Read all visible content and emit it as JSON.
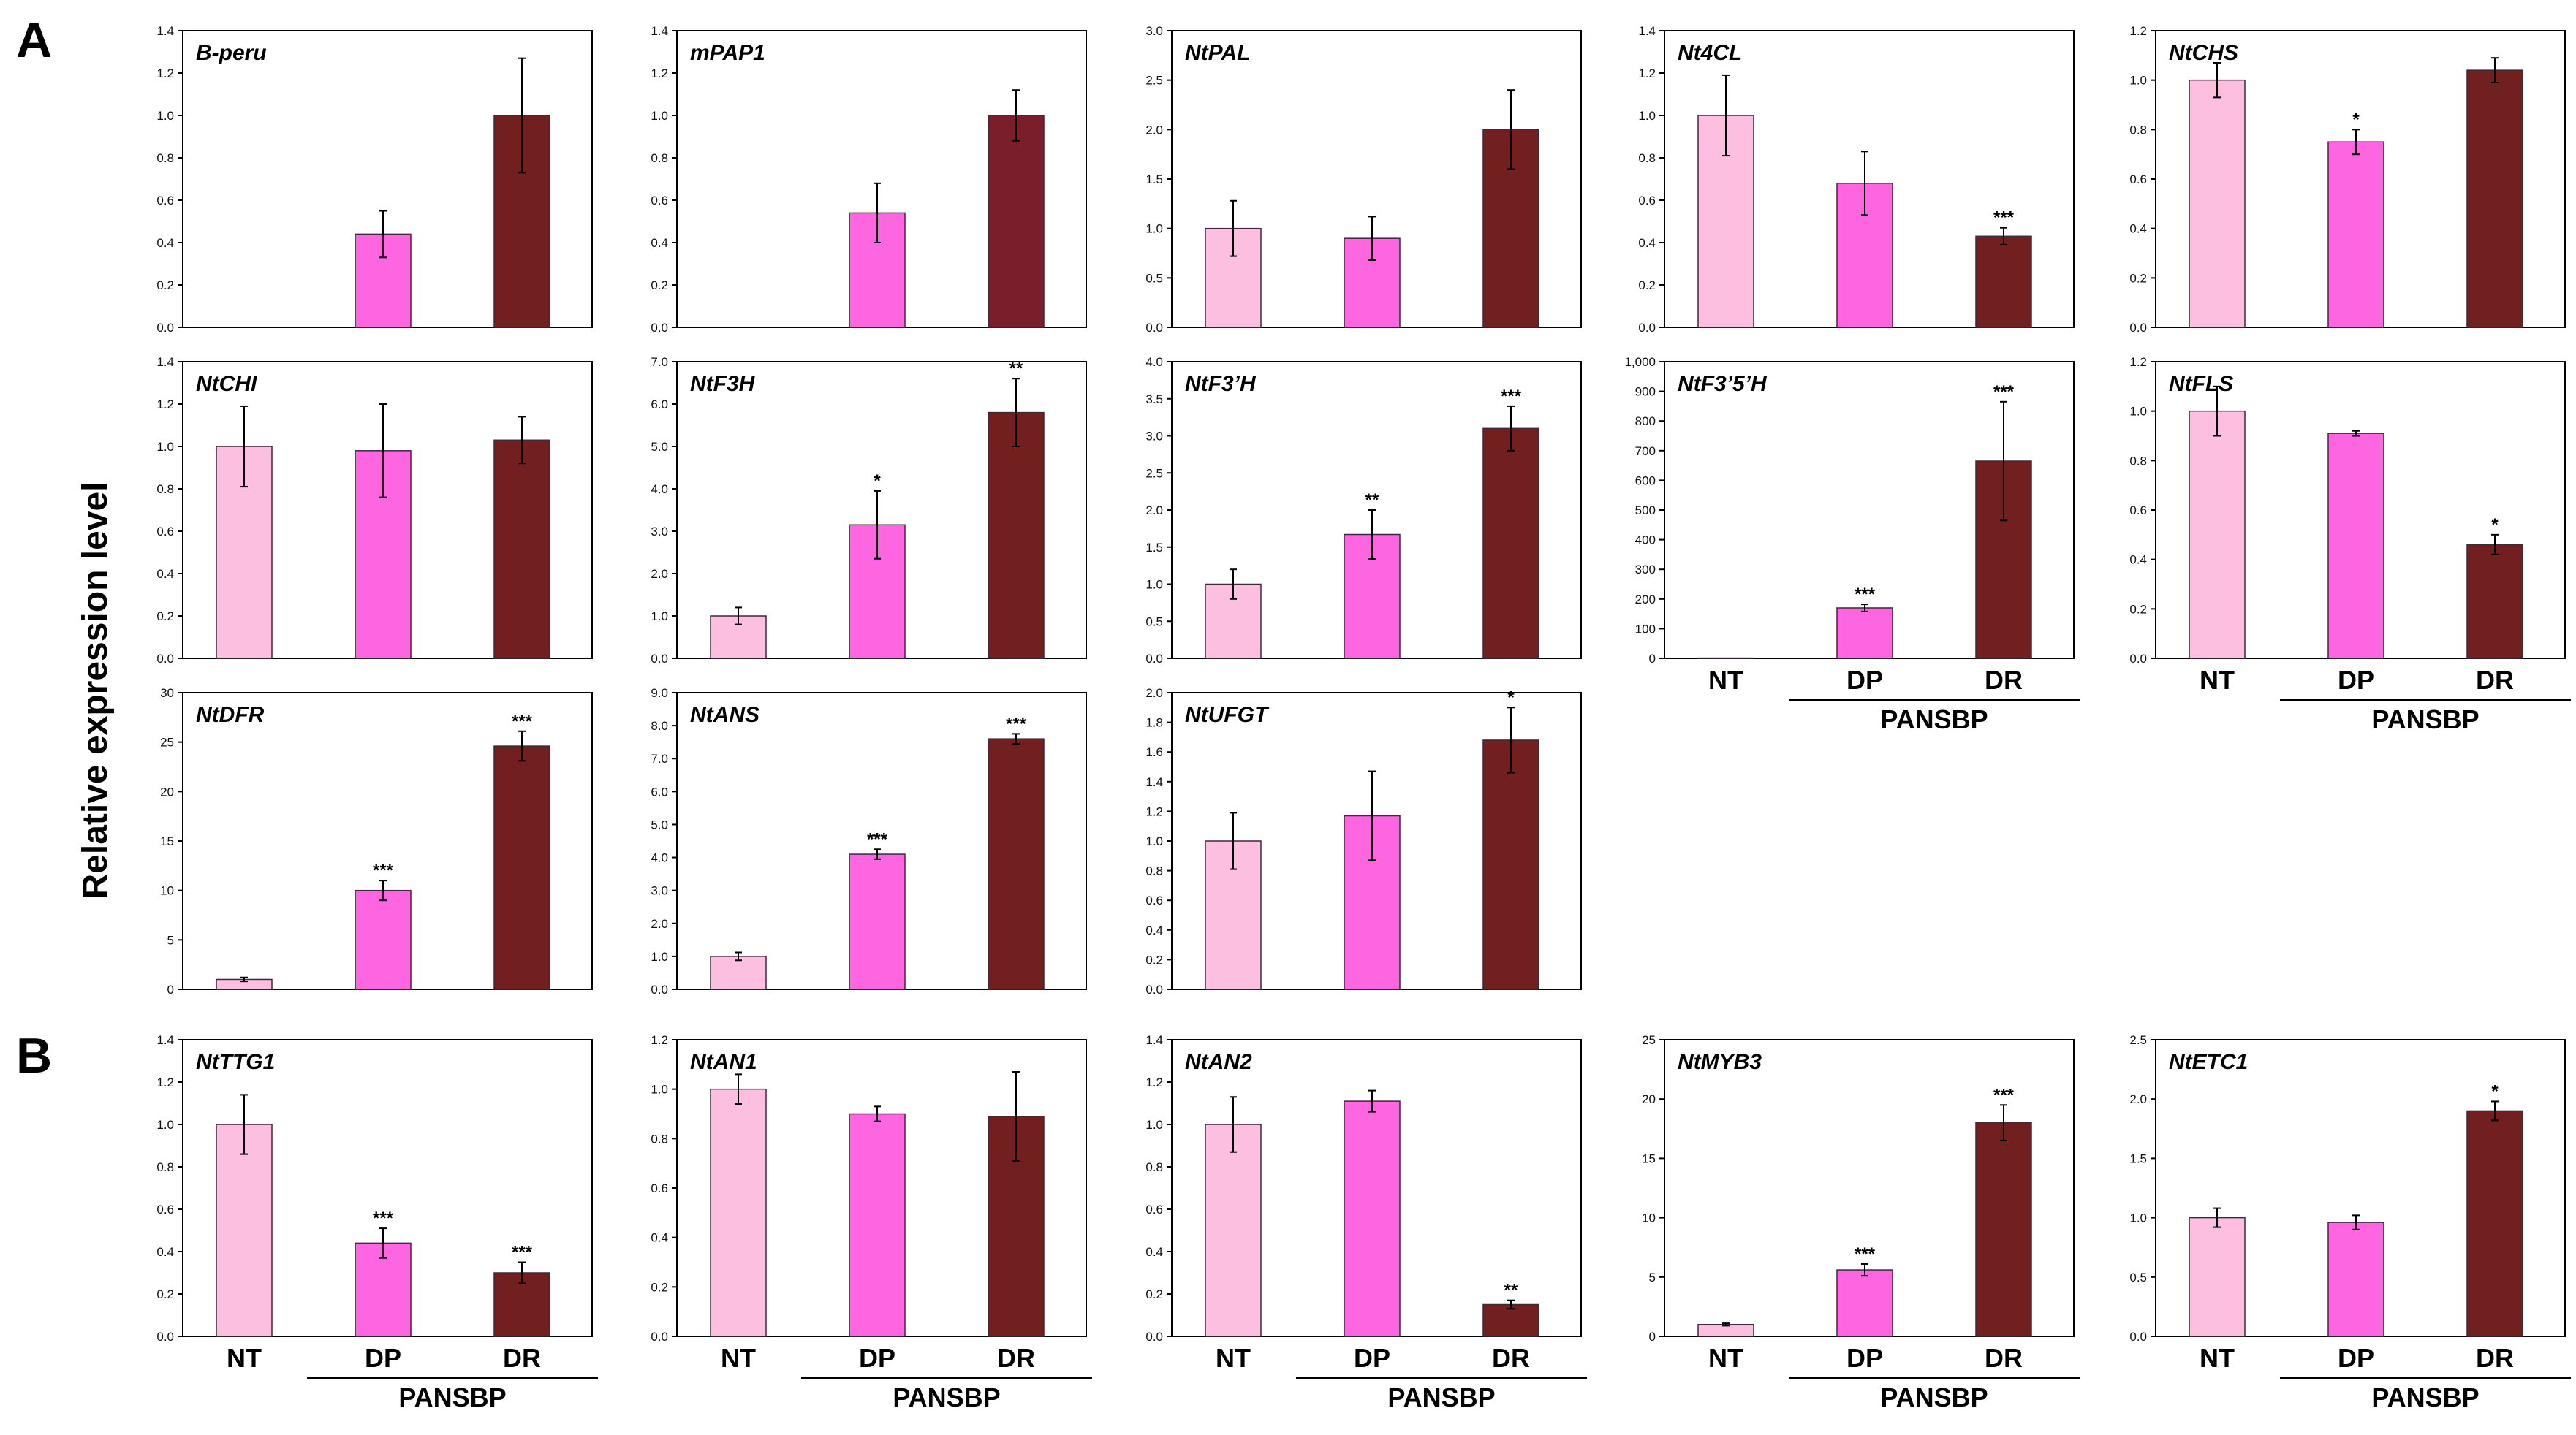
{
  "figure": {
    "panel_labels": [
      "A",
      "B"
    ],
    "shared_ylabel": "Relative expression level",
    "categories": [
      "NT",
      "DP",
      "DR"
    ],
    "group_label": "PANSBP",
    "colors": {
      "NT": "#fdbfe0",
      "DP": "#fd66e0",
      "DR": "#721f1f",
      "axis": "#000000"
    }
  },
  "chart_data": [
    {
      "type": "bar",
      "title": "B-peru",
      "panel": "A",
      "ylim": [
        0,
        1.4
      ],
      "yticks": [
        "0.0",
        "0.2",
        "0.4",
        "0.6",
        "0.8",
        "1.0",
        "1.2",
        "1.4"
      ],
      "categories": [
        "NT",
        "DP",
        "DR"
      ],
      "values": [
        0,
        0.44,
        1.0
      ],
      "errors": [
        0,
        0.11,
        0.27
      ],
      "significance": [
        "",
        "",
        ""
      ]
    },
    {
      "type": "bar",
      "title": "mPAP1",
      "panel": "A",
      "ylim": [
        0,
        1.4
      ],
      "yticks": [
        "0.0",
        "0.2",
        "0.4",
        "0.6",
        "0.8",
        "1.0",
        "1.2",
        "1.4"
      ],
      "categories": [
        "NT",
        "DP",
        "DR"
      ],
      "values": [
        0,
        0.54,
        1.0
      ],
      "errors": [
        0,
        0.14,
        0.12
      ],
      "significance": [
        "",
        "",
        ""
      ],
      "dr_color": "#7b1e2b"
    },
    {
      "type": "bar",
      "title": "NtPAL",
      "panel": "A",
      "ylim": [
        0,
        3.0
      ],
      "yticks": [
        "0.0",
        "0.5",
        "1.0",
        "1.5",
        "2.0",
        "2.5",
        "3.0"
      ],
      "categories": [
        "NT",
        "DP",
        "DR"
      ],
      "values": [
        1.0,
        0.9,
        2.0
      ],
      "errors": [
        0.28,
        0.22,
        0.4
      ],
      "significance": [
        "",
        "",
        ""
      ]
    },
    {
      "type": "bar",
      "title": "Nt4CL",
      "panel": "A",
      "ylim": [
        0,
        1.4
      ],
      "yticks": [
        "0.0",
        "0.2",
        "0.4",
        "0.6",
        "0.8",
        "1.0",
        "1.2",
        "1.4"
      ],
      "categories": [
        "NT",
        "DP",
        "DR"
      ],
      "values": [
        1.0,
        0.68,
        0.43
      ],
      "errors": [
        0.19,
        0.15,
        0.04
      ],
      "significance": [
        "",
        "",
        "***"
      ]
    },
    {
      "type": "bar",
      "title": "NtCHS",
      "panel": "A",
      "ylim": [
        0,
        1.2
      ],
      "yticks": [
        "0.0",
        "0.2",
        "0.4",
        "0.6",
        "0.8",
        "1.0",
        "1.2"
      ],
      "categories": [
        "NT",
        "DP",
        "DR"
      ],
      "values": [
        1.0,
        0.75,
        1.04
      ],
      "errors": [
        0.07,
        0.05,
        0.05
      ],
      "significance": [
        "",
        "*",
        ""
      ]
    },
    {
      "type": "bar",
      "title": "NtCHI",
      "panel": "A",
      "ylim": [
        0,
        1.4
      ],
      "yticks": [
        "0.0",
        "0.2",
        "0.4",
        "0.6",
        "0.8",
        "1.0",
        "1.2",
        "1.4"
      ],
      "categories": [
        "NT",
        "DP",
        "DR"
      ],
      "values": [
        1.0,
        0.98,
        1.03
      ],
      "errors": [
        0.19,
        0.22,
        0.11
      ],
      "significance": [
        "",
        "",
        ""
      ]
    },
    {
      "type": "bar",
      "title": "NtF3H",
      "panel": "A",
      "ylim": [
        0,
        7.0
      ],
      "yticks": [
        "0.0",
        "1.0",
        "2.0",
        "3.0",
        "4.0",
        "5.0",
        "6.0",
        "7.0"
      ],
      "categories": [
        "NT",
        "DP",
        "DR"
      ],
      "values": [
        1.0,
        3.15,
        5.8
      ],
      "errors": [
        0.2,
        0.8,
        0.8
      ],
      "significance": [
        "",
        "*",
        "**"
      ]
    },
    {
      "type": "bar",
      "title": "NtF3’H",
      "panel": "A",
      "ylim": [
        0,
        4.0
      ],
      "yticks": [
        "0.0",
        "0.5",
        "1.0",
        "1.5",
        "2.0",
        "2.5",
        "3.0",
        "3.5",
        "4.0"
      ],
      "categories": [
        "NT",
        "DP",
        "DR"
      ],
      "values": [
        1.0,
        1.67,
        3.1
      ],
      "errors": [
        0.2,
        0.33,
        0.3
      ],
      "significance": [
        "",
        "**",
        "***"
      ]
    },
    {
      "type": "bar",
      "title": "NtF3’5’H",
      "panel": "A",
      "ylim": [
        0,
        1000
      ],
      "yticks": [
        "0",
        "100",
        "200",
        "300",
        "400",
        "500",
        "600",
        "700",
        "800",
        "900",
        "1,000"
      ],
      "categories": [
        "NT",
        "DP",
        "DR"
      ],
      "values": [
        1,
        170,
        665
      ],
      "errors": [
        0,
        12,
        200
      ],
      "significance": [
        "",
        "***",
        "***"
      ],
      "xaxis_labels": true
    },
    {
      "type": "bar",
      "title": "NtFLS",
      "panel": "A",
      "ylim": [
        0,
        1.2
      ],
      "yticks": [
        "0.0",
        "0.2",
        "0.4",
        "0.6",
        "0.8",
        "1.0",
        "1.2"
      ],
      "categories": [
        "NT",
        "DP",
        "DR"
      ],
      "values": [
        1.0,
        0.91,
        0.46
      ],
      "errors": [
        0.1,
        0.01,
        0.04
      ],
      "significance": [
        "",
        "",
        "*"
      ],
      "xaxis_labels": true
    },
    {
      "type": "bar",
      "title": "NtDFR",
      "panel": "A",
      "ylim": [
        0,
        30
      ],
      "yticks": [
        "0",
        "5",
        "10",
        "15",
        "20",
        "25",
        "30"
      ],
      "categories": [
        "NT",
        "DP",
        "DR"
      ],
      "values": [
        1.0,
        10.0,
        24.6
      ],
      "errors": [
        0.2,
        1.0,
        1.5
      ],
      "significance": [
        "",
        "***",
        "***"
      ]
    },
    {
      "type": "bar",
      "title": "NtANS",
      "panel": "A",
      "ylim": [
        0,
        9.0
      ],
      "yticks": [
        "0.0",
        "1.0",
        "2.0",
        "3.0",
        "4.0",
        "5.0",
        "6.0",
        "7.0",
        "8.0",
        "9.0"
      ],
      "categories": [
        "NT",
        "DP",
        "DR"
      ],
      "values": [
        1.0,
        4.1,
        7.6
      ],
      "errors": [
        0.12,
        0.15,
        0.15
      ],
      "significance": [
        "",
        "***",
        "***"
      ]
    },
    {
      "type": "bar",
      "title": "NtUFGT",
      "panel": "A",
      "ylim": [
        0,
        2.0
      ],
      "yticks": [
        "0.0",
        "0.2",
        "0.4",
        "0.6",
        "0.8",
        "1.0",
        "1.2",
        "1.4",
        "1.6",
        "1.8",
        "2.0"
      ],
      "categories": [
        "NT",
        "DP",
        "DR"
      ],
      "values": [
        1.0,
        1.17,
        1.68
      ],
      "errors": [
        0.19,
        0.3,
        0.22
      ],
      "significance": [
        "",
        "",
        "*"
      ]
    },
    {
      "type": "bar",
      "title": "NtTTG1",
      "panel": "B",
      "ylim": [
        0,
        1.4
      ],
      "yticks": [
        "0.0",
        "0.2",
        "0.4",
        "0.6",
        "0.8",
        "1.0",
        "1.2",
        "1.4"
      ],
      "categories": [
        "NT",
        "DP",
        "DR"
      ],
      "values": [
        1.0,
        0.44,
        0.3
      ],
      "errors": [
        0.14,
        0.07,
        0.05
      ],
      "significance": [
        "",
        "***",
        "***"
      ],
      "xaxis_labels": true
    },
    {
      "type": "bar",
      "title": "NtAN1",
      "panel": "B",
      "ylim": [
        0,
        1.2
      ],
      "yticks": [
        "0.0",
        "0.2",
        "0.4",
        "0.6",
        "0.8",
        "1.0",
        "1.2"
      ],
      "categories": [
        "NT",
        "DP",
        "DR"
      ],
      "values": [
        1.0,
        0.9,
        0.89
      ],
      "errors": [
        0.06,
        0.03,
        0.18
      ],
      "significance": [
        "",
        "",
        ""
      ],
      "xaxis_labels": true
    },
    {
      "type": "bar",
      "title": "NtAN2",
      "panel": "B",
      "ylim": [
        0,
        1.4
      ],
      "yticks": [
        "0.0",
        "0.2",
        "0.4",
        "0.6",
        "0.8",
        "1.0",
        "1.2",
        "1.4"
      ],
      "categories": [
        "NT",
        "DP",
        "DR"
      ],
      "values": [
        1.0,
        1.11,
        0.15
      ],
      "errors": [
        0.13,
        0.05,
        0.02
      ],
      "significance": [
        "",
        "",
        "**"
      ],
      "xaxis_labels": true
    },
    {
      "type": "bar",
      "title": "NtMYB3",
      "panel": "B",
      "ylim": [
        0,
        25
      ],
      "yticks": [
        "0",
        "5",
        "10",
        "15",
        "20",
        "25"
      ],
      "categories": [
        "NT",
        "DP",
        "DR"
      ],
      "values": [
        1.0,
        5.6,
        18.0
      ],
      "errors": [
        0.1,
        0.5,
        1.5
      ],
      "significance": [
        "",
        "***",
        "***"
      ],
      "xaxis_labels": true
    },
    {
      "type": "bar",
      "title": "NtETC1",
      "panel": "B",
      "ylim": [
        0,
        2.5
      ],
      "yticks": [
        "0.0",
        "0.5",
        "1.0",
        "1.5",
        "2.0",
        "2.5"
      ],
      "categories": [
        "NT",
        "DP",
        "DR"
      ],
      "values": [
        1.0,
        0.96,
        1.9
      ],
      "errors": [
        0.08,
        0.06,
        0.08
      ],
      "significance": [
        "",
        "",
        "*"
      ],
      "xaxis_labels": true
    }
  ]
}
